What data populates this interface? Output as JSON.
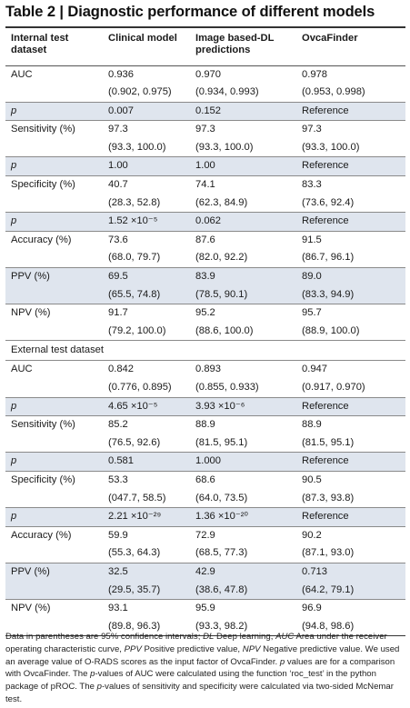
{
  "title": "Table 2 | Diagnostic performance of different models",
  "headers": [
    "Internal test dataset",
    "Clinical model",
    "Image based-DL predictions",
    "OvcaFinder"
  ],
  "internal_rows": [
    {
      "label": "AUC",
      "values": [
        "0.936",
        "0.970",
        "0.978"
      ],
      "shade": false,
      "gap": true
    },
    {
      "label": "",
      "values": [
        "(0.902, 0.975)",
        "(0.934, 0.993)",
        "(0.953, 0.998)"
      ],
      "shade": false,
      "gap": false
    },
    {
      "label": "p",
      "values": [
        "0.007",
        "0.152",
        "Reference"
      ],
      "shade": true,
      "gap": true,
      "italic": true
    },
    {
      "label": "Sensitivity (%)",
      "values": [
        "97.3",
        "97.3",
        "97.3"
      ],
      "shade": false,
      "gap": true
    },
    {
      "label": "",
      "values": [
        "(93.3, 100.0)",
        "(93.3, 100.0)",
        "(93.3, 100.0)"
      ],
      "shade": false,
      "gap": false
    },
    {
      "label": "p",
      "values": [
        "1.00",
        "1.00",
        "Reference"
      ],
      "shade": true,
      "gap": true,
      "italic": true
    },
    {
      "label": "Specificity (%)",
      "values": [
        "40.7",
        "74.1",
        "83.3"
      ],
      "shade": false,
      "gap": true
    },
    {
      "label": "",
      "values": [
        "(28.3, 52.8)",
        "(62.3, 84.9)",
        "(73.6, 92.4)"
      ],
      "shade": false,
      "gap": false
    },
    {
      "label": "p",
      "values": [
        "1.52 ×10⁻⁵",
        "0.062",
        "Reference"
      ],
      "shade": true,
      "gap": true,
      "italic": true
    },
    {
      "label": "Accuracy (%)",
      "values": [
        "73.6",
        "87.6",
        "91.5"
      ],
      "shade": false,
      "gap": true
    },
    {
      "label": "",
      "values": [
        "(68.0, 79.7)",
        "(82.0, 92.2)",
        "(86.7, 96.1)"
      ],
      "shade": false,
      "gap": false
    },
    {
      "label": "PPV (%)",
      "values": [
        "69.5",
        "83.9",
        "89.0"
      ],
      "shade": true,
      "gap": true
    },
    {
      "label": "",
      "values": [
        "(65.5, 74.8)",
        "(78.5, 90.1)",
        "(83.3, 94.9)"
      ],
      "shade": true,
      "gap": false
    },
    {
      "label": "NPV (%)",
      "values": [
        "91.7",
        "95.2",
        "95.7"
      ],
      "shade": false,
      "gap": true
    },
    {
      "label": "",
      "values": [
        "(79.2, 100.0)",
        "(88.6, 100.0)",
        "(88.9, 100.0)"
      ],
      "shade": false,
      "gap": false
    }
  ],
  "external_label": "External test dataset",
  "external_rows": [
    {
      "label": "AUC",
      "values": [
        "0.842",
        "0.893",
        "0.947"
      ],
      "shade": false,
      "gap": false
    },
    {
      "label": "",
      "values": [
        "(0.776, 0.895)",
        "(0.855, 0.933)",
        "(0.917, 0.970)"
      ],
      "shade": false,
      "gap": false
    },
    {
      "label": "p",
      "values": [
        "4.65 ×10⁻⁵",
        "3.93 ×10⁻⁶",
        "Reference"
      ],
      "shade": true,
      "gap": true,
      "italic": true
    },
    {
      "label": "Sensitivity (%)",
      "values": [
        "85.2",
        "88.9",
        "88.9"
      ],
      "shade": false,
      "gap": true
    },
    {
      "label": "",
      "values": [
        "(76.5, 92.6)",
        "(81.5, 95.1)",
        "(81.5, 95.1)"
      ],
      "shade": false,
      "gap": false
    },
    {
      "label": "p",
      "values": [
        "0.581",
        "1.000",
        "Reference"
      ],
      "shade": true,
      "gap": true,
      "italic": true
    },
    {
      "label": "Specificity (%)",
      "values": [
        "53.3",
        "68.6",
        "90.5"
      ],
      "shade": false,
      "gap": true
    },
    {
      "label": "",
      "values": [
        "(047.7, 58.5)",
        "(64.0, 73.5)",
        "(87.3, 93.8)"
      ],
      "shade": false,
      "gap": false
    },
    {
      "label": "p",
      "values": [
        "2.21 ×10⁻²⁹",
        "1.36 ×10⁻²⁰",
        "Reference"
      ],
      "shade": true,
      "gap": true,
      "italic": true
    },
    {
      "label": "Accuracy (%)",
      "values": [
        "59.9",
        "72.9",
        "90.2"
      ],
      "shade": false,
      "gap": true
    },
    {
      "label": "",
      "values": [
        "(55.3, 64.3)",
        "(68.5, 77.3)",
        "(87.1, 93.0)"
      ],
      "shade": false,
      "gap": false
    },
    {
      "label": "PPV (%)",
      "values": [
        "32.5",
        "42.9",
        "0.713"
      ],
      "shade": true,
      "gap": true
    },
    {
      "label": "",
      "values": [
        "(29.5, 35.7)",
        "(38.6, 47.8)",
        "(64.2, 79.1)"
      ],
      "shade": true,
      "gap": false
    },
    {
      "label": "NPV (%)",
      "values": [
        "93.1",
        "95.9",
        "96.9"
      ],
      "shade": false,
      "gap": true
    },
    {
      "label": "",
      "values": [
        "(89.8, 96.3)",
        "(93.3, 98.2)",
        "(94.8, 98.6)"
      ],
      "shade": false,
      "gap": false
    }
  ],
  "footnote": [
    {
      "text": "Data in parentheses are 95% confidence intervals; ",
      "italic": false
    },
    {
      "text": "DL",
      "italic": true
    },
    {
      "text": " Deep learning, ",
      "italic": false
    },
    {
      "text": "AUC",
      "italic": true
    },
    {
      "text": " Area under the receiver operating characteristic curve, ",
      "italic": false
    },
    {
      "text": "PPV",
      "italic": true
    },
    {
      "text": " Positive predictive value, ",
      "italic": false
    },
    {
      "text": "NPV",
      "italic": true
    },
    {
      "text": " Negative predictive value. We used an average value of O-RADS scores as the input factor of OvcaFinder. ",
      "italic": false
    },
    {
      "text": "p",
      "italic": true
    },
    {
      "text": " values are for a comparison with OvcaFinder. The ",
      "italic": false
    },
    {
      "text": "p",
      "italic": true
    },
    {
      "text": "-values of AUC were calculated using the function ‘roc_test’ in the python package of pROC. The ",
      "italic": false
    },
    {
      "text": "p",
      "italic": true
    },
    {
      "text": "-values of sensitivity and specificity were calculated via two-sided McNemar test.",
      "italic": false
    }
  ]
}
